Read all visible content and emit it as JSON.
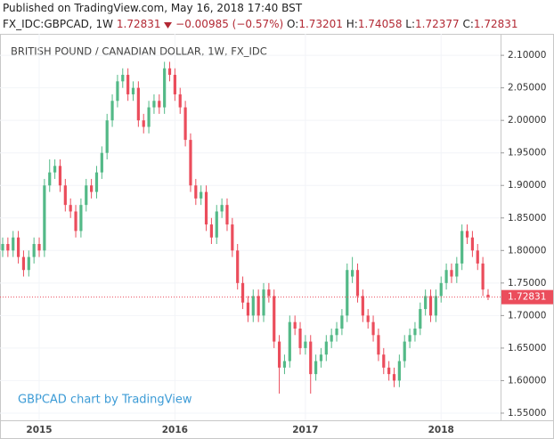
{
  "header": {
    "published": "Published on TradingView.com, May 16, 2018 17:40 BST",
    "symbol": "FX_IDC:GBPCAD, 1W",
    "change": "−0.00985 (−0.57%)",
    "o_label": "O:",
    "h_label": "H:",
    "l_label": "L:",
    "c_label": "C:"
  },
  "chart_data": {
    "type": "candlestick",
    "title": "BRITISH POUND / CANADIAN DOLLAR, 1W, FX_IDC",
    "watermark": "GBPCAD chart by TradingView",
    "categories": [
      null,
      null,
      null,
      null,
      null,
      null,
      null,
      "2015",
      null,
      null,
      null,
      null,
      null,
      null,
      null,
      null,
      null,
      null,
      null,
      null,
      null,
      null,
      null,
      null,
      null,
      null,
      null,
      null,
      null,
      null,
      null,
      null,
      null,
      "2016",
      null,
      null,
      null,
      null,
      null,
      null,
      null,
      null,
      null,
      null,
      null,
      null,
      null,
      null,
      null,
      null,
      null,
      null,
      null,
      null,
      null,
      null,
      null,
      null,
      "2017",
      null,
      null,
      null,
      null,
      null,
      null,
      null,
      null,
      null,
      null,
      null,
      null,
      null,
      null,
      null,
      null,
      null,
      null,
      null,
      null,
      null,
      null,
      null,
      null,
      null,
      "2018",
      null,
      null,
      null,
      null,
      null,
      null,
      null,
      null,
      null
    ],
    "open": [
      1.8,
      1.81,
      1.8,
      1.82,
      1.79,
      1.77,
      1.79,
      1.81,
      1.8,
      1.9,
      1.92,
      1.93,
      1.9,
      1.87,
      1.86,
      1.83,
      1.87,
      1.9,
      1.89,
      1.92,
      1.95,
      2.0,
      2.03,
      2.06,
      2.07,
      2.04,
      2.05,
      2.0,
      1.99,
      2.02,
      2.03,
      2.02,
      2.08,
      2.07,
      2.04,
      2.02,
      1.97,
      1.9,
      1.88,
      1.89,
      1.84,
      1.82,
      1.86,
      1.87,
      1.84,
      1.8,
      1.75,
      1.72,
      1.7,
      1.73,
      1.7,
      1.74,
      1.73,
      1.66,
      1.62,
      1.63,
      1.69,
      1.68,
      1.65,
      1.66,
      1.61,
      1.63,
      1.64,
      1.66,
      1.67,
      1.68,
      1.7,
      1.76,
      1.77,
      1.73,
      1.7,
      1.69,
      1.67,
      1.64,
      1.62,
      1.61,
      1.6,
      1.63,
      1.66,
      1.67,
      1.68,
      1.71,
      1.73,
      1.7,
      1.73,
      1.75,
      1.77,
      1.76,
      1.78,
      1.83,
      1.82,
      1.8,
      1.78,
      1.73201
    ],
    "high": [
      1.82,
      1.82,
      1.83,
      1.83,
      1.8,
      1.8,
      1.82,
      1.82,
      1.91,
      1.94,
      1.94,
      1.94,
      1.91,
      1.88,
      1.87,
      1.88,
      1.91,
      1.91,
      1.93,
      1.96,
      2.01,
      2.04,
      2.07,
      2.08,
      2.08,
      2.06,
      2.06,
      2.01,
      2.03,
      2.04,
      2.04,
      2.09,
      2.09,
      2.08,
      2.05,
      2.03,
      1.98,
      1.91,
      1.9,
      1.9,
      1.85,
      1.87,
      1.88,
      1.88,
      1.85,
      1.81,
      1.76,
      1.73,
      1.74,
      1.74,
      1.75,
      1.75,
      1.74,
      1.67,
      1.64,
      1.7,
      1.7,
      1.69,
      1.67,
      1.67,
      1.64,
      1.65,
      1.67,
      1.68,
      1.69,
      1.71,
      1.78,
      1.79,
      1.78,
      1.74,
      1.71,
      1.7,
      1.68,
      1.65,
      1.63,
      1.62,
      1.64,
      1.67,
      1.68,
      1.69,
      1.72,
      1.74,
      1.74,
      1.74,
      1.76,
      1.78,
      1.78,
      1.79,
      1.84,
      1.84,
      1.83,
      1.81,
      1.79,
      1.74058
    ],
    "low": [
      1.79,
      1.79,
      1.79,
      1.78,
      1.76,
      1.76,
      1.78,
      1.79,
      1.79,
      1.89,
      1.91,
      1.89,
      1.86,
      1.85,
      1.82,
      1.82,
      1.86,
      1.88,
      1.88,
      1.91,
      1.94,
      1.99,
      2.02,
      2.05,
      2.03,
      2.03,
      1.99,
      1.98,
      1.98,
      2.01,
      2.01,
      2.01,
      2.06,
      2.03,
      2.01,
      1.96,
      1.89,
      1.87,
      1.87,
      1.83,
      1.81,
      1.81,
      1.85,
      1.83,
      1.79,
      1.74,
      1.71,
      1.69,
      1.69,
      1.69,
      1.69,
      1.72,
      1.65,
      1.58,
      1.61,
      1.62,
      1.67,
      1.64,
      1.64,
      1.58,
      1.6,
      1.62,
      1.63,
      1.65,
      1.66,
      1.67,
      1.69,
      1.75,
      1.72,
      1.69,
      1.68,
      1.66,
      1.63,
      1.61,
      1.6,
      1.59,
      1.59,
      1.62,
      1.65,
      1.66,
      1.67,
      1.7,
      1.69,
      1.69,
      1.72,
      1.74,
      1.75,
      1.75,
      1.77,
      1.81,
      1.79,
      1.77,
      1.73,
      1.72377
    ],
    "close": [
      1.81,
      1.8,
      1.82,
      1.79,
      1.77,
      1.79,
      1.81,
      1.8,
      1.9,
      1.92,
      1.93,
      1.9,
      1.87,
      1.86,
      1.83,
      1.87,
      1.9,
      1.89,
      1.92,
      1.95,
      2.0,
      2.03,
      2.06,
      2.07,
      2.04,
      2.05,
      2.0,
      1.99,
      2.02,
      2.03,
      2.02,
      2.08,
      2.07,
      2.04,
      2.02,
      1.97,
      1.9,
      1.88,
      1.89,
      1.84,
      1.82,
      1.86,
      1.87,
      1.84,
      1.8,
      1.75,
      1.72,
      1.7,
      1.73,
      1.7,
      1.74,
      1.73,
      1.66,
      1.62,
      1.63,
      1.69,
      1.68,
      1.65,
      1.66,
      1.61,
      1.63,
      1.64,
      1.66,
      1.67,
      1.68,
      1.7,
      1.77,
      1.77,
      1.73,
      1.7,
      1.69,
      1.67,
      1.64,
      1.62,
      1.61,
      1.6,
      1.63,
      1.66,
      1.67,
      1.68,
      1.71,
      1.73,
      1.7,
      1.73,
      1.75,
      1.77,
      1.76,
      1.78,
      1.83,
      1.82,
      1.8,
      1.78,
      1.74,
      1.72831
    ],
    "up_color": "#53b987",
    "down_color": "#eb4d5c",
    "grid": true,
    "ylim": [
      1.539,
      2.133
    ],
    "yticks": [
      {
        "value": 1.55,
        "label": "1.55000"
      },
      {
        "value": 1.6,
        "label": "1.60000"
      },
      {
        "value": 1.65,
        "label": "1.65000"
      },
      {
        "value": 1.7,
        "label": "1.70000"
      },
      {
        "value": 1.75,
        "label": "1.75000"
      },
      {
        "value": 1.8,
        "label": "1.80000"
      },
      {
        "value": 1.85,
        "label": "1.85000"
      },
      {
        "value": 1.9,
        "label": "1.90000"
      },
      {
        "value": 1.95,
        "label": "1.95000"
      },
      {
        "value": 2.0,
        "label": "2.00000"
      },
      {
        "value": 2.05,
        "label": "2.05000"
      },
      {
        "value": 2.1,
        "label": "2.10000"
      }
    ]
  }
}
